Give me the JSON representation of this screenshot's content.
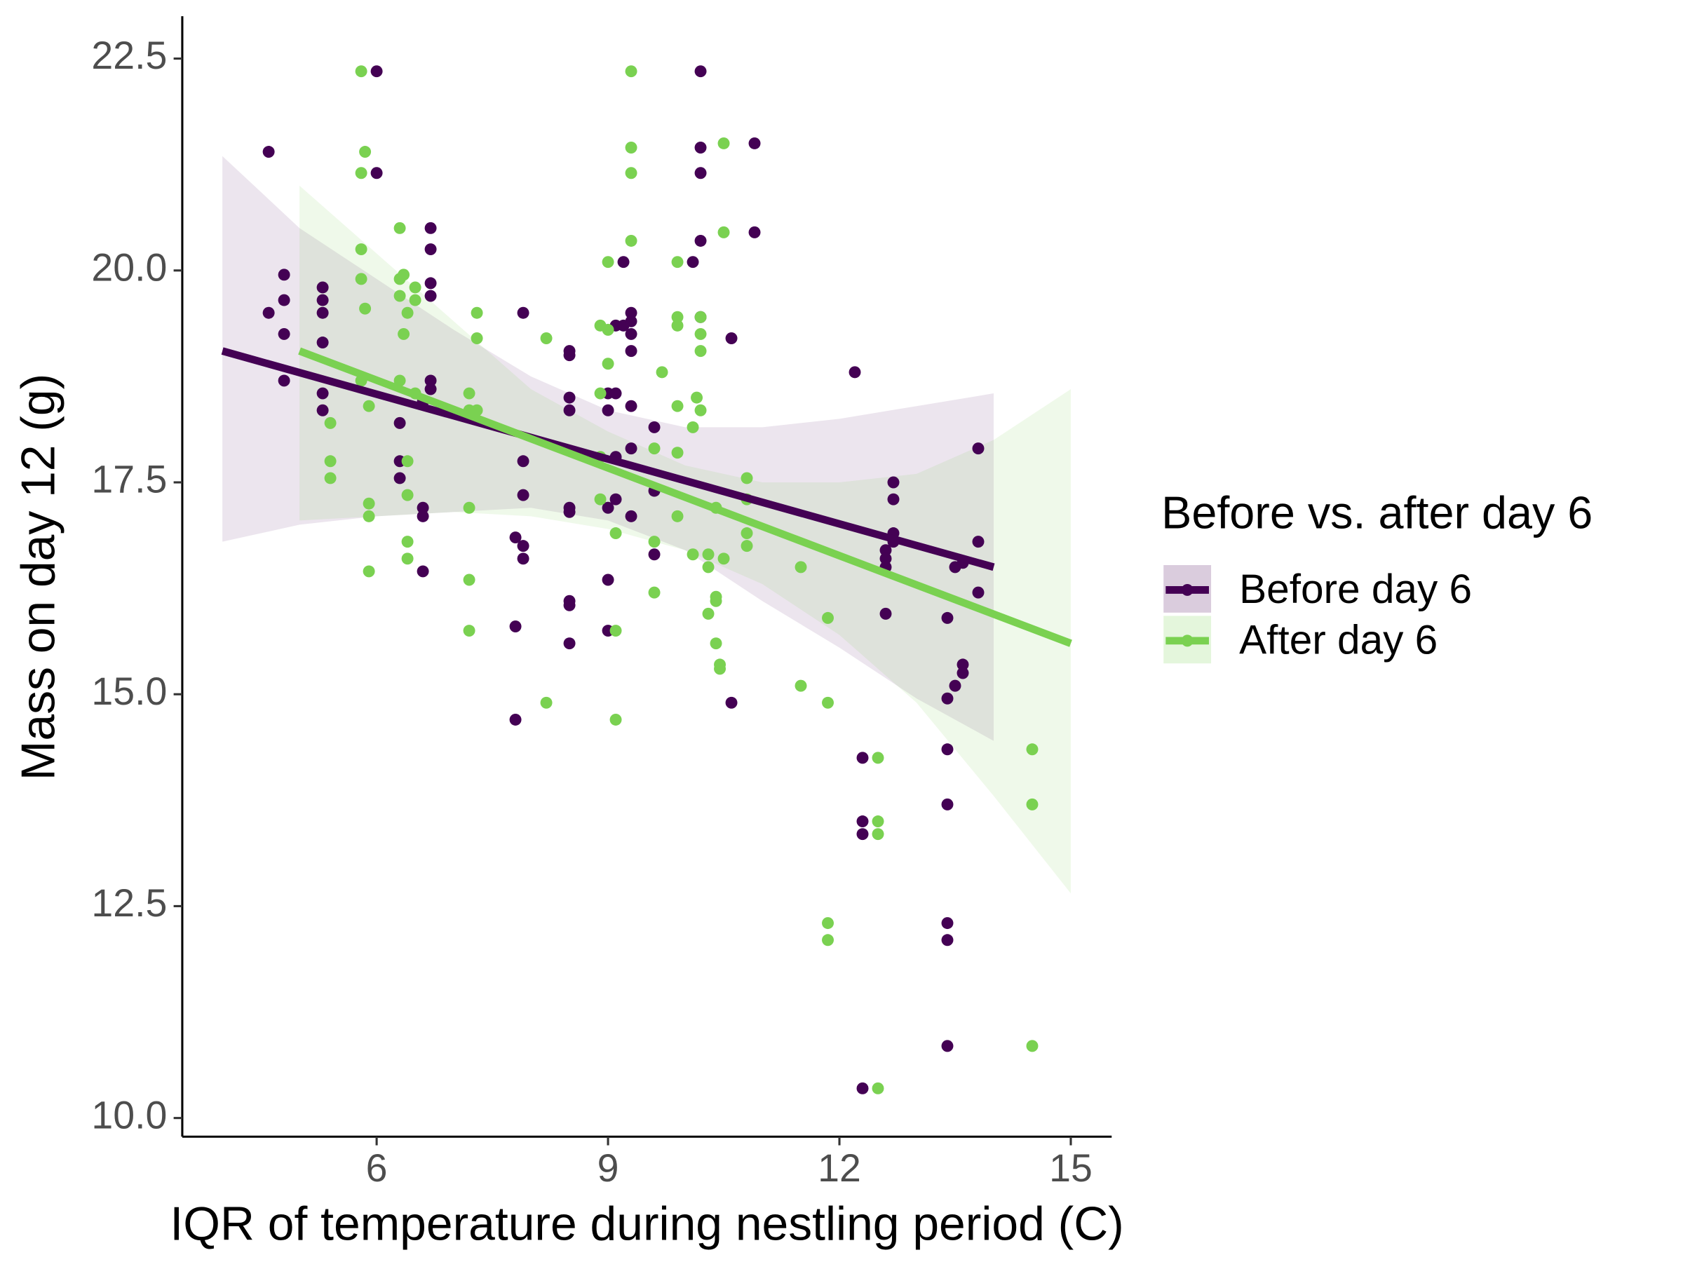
{
  "chart_data": {
    "type": "scatter",
    "x_label": "IQR of temperature during nestling period (C)",
    "y_label": "Mass on day 12 (g)",
    "legend_title": "Before vs. after day 6",
    "legend_position": "right",
    "xlim": [
      3.48,
      15.53
    ],
    "ylim": [
      9.78,
      23.0
    ],
    "xticks": [
      6,
      9,
      12,
      15
    ],
    "yticks": [
      {
        "value": 10,
        "label": "10.0"
      },
      12.5,
      {
        "value": 15,
        "label": "15.0"
      },
      17.5,
      {
        "value": 20,
        "label": "20.0"
      },
      22.5
    ],
    "grid": false,
    "series": [
      {
        "name": "Before day 6",
        "color": "#440154",
        "x": [
          4.6,
          4.6,
          4.8,
          4.8,
          4.8,
          4.8,
          5.3,
          5.3,
          5.3,
          5.3,
          5.3,
          5.3,
          6.0,
          6.0,
          6.3,
          6.3,
          6.3,
          6.6,
          6.6,
          6.6,
          6.6,
          6.7,
          6.7,
          6.7,
          6.7,
          6.7,
          6.7,
          7.8,
          7.8,
          7.8,
          7.9,
          7.9,
          7.9,
          7.9,
          7.9,
          8.5,
          8.5,
          8.5,
          8.5,
          8.5,
          8.5,
          8.5,
          8.5,
          8.5,
          9.0,
          9.0,
          9.0,
          9.0,
          9.0,
          9.1,
          9.1,
          9.1,
          9.1,
          9.2,
          9.2,
          9.3,
          9.3,
          9.3,
          9.3,
          9.3,
          9.3,
          9.3,
          9.6,
          9.6,
          9.6,
          10.1,
          10.2,
          10.2,
          10.2,
          10.2,
          10.2,
          10.6,
          10.6,
          10.9,
          10.9,
          12.2,
          12.3,
          12.3,
          12.3,
          12.3,
          12.6,
          12.6,
          12.6,
          12.6,
          12.7,
          12.7,
          12.7,
          12.7,
          13.4,
          13.4,
          13.4,
          13.4,
          13.4,
          13.4,
          13.4,
          13.5,
          13.5,
          13.6,
          13.6,
          13.6,
          13.8,
          13.8,
          13.8
        ],
        "values": [
          21.4,
          19.5,
          19.95,
          19.65,
          19.25,
          18.7,
          19.8,
          19.65,
          19.5,
          19.15,
          18.55,
          18.35,
          22.35,
          21.15,
          18.2,
          17.75,
          17.55,
          18.45,
          17.2,
          17.1,
          16.45,
          20.5,
          20.25,
          19.85,
          19.7,
          18.7,
          18.6,
          16.85,
          15.8,
          14.7,
          19.5,
          17.75,
          17.35,
          16.75,
          16.6,
          19.05,
          19.0,
          18.5,
          18.35,
          17.2,
          17.15,
          16.1,
          16.05,
          15.6,
          18.55,
          18.35,
          17.2,
          16.35,
          15.75,
          19.35,
          18.55,
          17.8,
          17.3,
          20.1,
          19.35,
          19.5,
          19.4,
          19.25,
          19.05,
          18.4,
          17.9,
          17.1,
          18.15,
          17.4,
          16.65,
          20.1,
          22.35,
          21.45,
          21.15,
          20.35,
          19.45,
          19.2,
          14.9,
          21.5,
          20.45,
          18.8,
          14.25,
          13.5,
          13.35,
          10.35,
          16.7,
          16.6,
          16.5,
          15.95,
          17.5,
          17.3,
          16.9,
          16.8,
          15.9,
          14.95,
          14.35,
          13.7,
          12.3,
          12.1,
          10.85,
          16.5,
          15.1,
          16.55,
          15.35,
          15.25,
          17.9,
          16.8,
          16.2
        ],
        "fit": {
          "x": [
            4.0,
            14.0
          ],
          "values": [
            19.05,
            16.5
          ]
        },
        "band": {
          "x": [
            4,
            5,
            6,
            7,
            8,
            9,
            10,
            11,
            12,
            13,
            14
          ],
          "upper": [
            21.35,
            20.5,
            19.9,
            19.3,
            18.75,
            18.35,
            18.15,
            18.15,
            18.25,
            18.4,
            18.55
          ],
          "lower": [
            16.8,
            17.0,
            17.1,
            17.15,
            17.2,
            17.05,
            16.7,
            16.1,
            15.55,
            14.95,
            14.45
          ]
        }
      },
      {
        "name": "After day 6",
        "color": "#7AD151",
        "x": [
          5.8,
          5.85,
          5.8,
          5.8,
          5.8,
          5.85,
          5.8,
          5.9,
          5.9,
          5.9,
          5.9,
          5.4,
          5.4,
          5.4,
          6.3,
          6.3,
          6.3,
          6.35,
          6.35,
          6.4,
          6.4,
          6.4,
          6.4,
          6.4,
          6.5,
          6.5,
          6.3,
          6.5,
          7.2,
          7.2,
          7.2,
          7.2,
          7.2,
          7.3,
          7.3,
          7.3,
          8.2,
          8.2,
          8.9,
          8.9,
          8.9,
          8.9,
          9.0,
          9.0,
          9.0,
          9.1,
          9.1,
          9.1,
          9.3,
          9.3,
          9.3,
          9.3,
          9.6,
          9.6,
          9.6,
          9.7,
          9.9,
          9.9,
          9.9,
          9.9,
          9.9,
          9.9,
          10.1,
          10.1,
          10.2,
          10.2,
          10.2,
          10.15,
          10.2,
          10.3,
          10.3,
          10.3,
          10.4,
          10.4,
          10.4,
          10.4,
          10.45,
          10.45,
          10.5,
          10.5,
          10.5,
          10.8,
          10.8,
          10.8,
          10.8,
          11.5,
          11.5,
          11.85,
          11.85,
          11.85,
          11.85,
          12.5,
          12.5,
          12.5,
          12.5,
          14.5,
          14.5,
          14.5
        ],
        "values": [
          22.35,
          21.4,
          21.15,
          20.25,
          19.9,
          19.55,
          18.7,
          18.4,
          17.25,
          17.1,
          16.45,
          18.2,
          17.75,
          17.55,
          20.5,
          19.9,
          19.7,
          19.95,
          19.25,
          19.5,
          17.75,
          17.35,
          16.8,
          16.6,
          19.8,
          19.65,
          18.7,
          18.55,
          18.55,
          18.35,
          17.2,
          16.35,
          15.75,
          19.5,
          19.2,
          18.35,
          19.2,
          14.9,
          19.35,
          18.55,
          17.8,
          17.3,
          20.1,
          19.3,
          18.9,
          16.9,
          15.75,
          14.7,
          22.35,
          21.45,
          21.15,
          20.35,
          17.9,
          16.8,
          16.2,
          18.8,
          20.1,
          19.45,
          19.35,
          18.4,
          17.85,
          17.1,
          18.15,
          16.65,
          19.45,
          19.25,
          19.05,
          18.5,
          18.35,
          16.65,
          16.5,
          15.95,
          17.2,
          16.15,
          16.1,
          15.6,
          15.35,
          15.3,
          21.5,
          20.45,
          16.6,
          17.55,
          17.3,
          16.9,
          16.75,
          16.5,
          15.1,
          15.9,
          14.9,
          12.3,
          12.1,
          14.25,
          13.5,
          13.35,
          10.35,
          14.35,
          13.7,
          10.85
        ],
        "fit": {
          "x": [
            5.0,
            15.0
          ],
          "values": [
            19.05,
            15.6
          ]
        },
        "band": {
          "x": [
            5,
            6,
            7,
            8,
            9,
            10,
            11,
            12,
            13,
            14,
            15
          ],
          "upper": [
            21.0,
            20.2,
            19.4,
            18.6,
            18.1,
            17.7,
            17.5,
            17.5,
            17.6,
            18.0,
            18.6
          ],
          "lower": [
            17.05,
            17.1,
            17.15,
            17.1,
            16.95,
            16.7,
            16.3,
            15.7,
            14.9,
            13.8,
            12.65
          ]
        }
      }
    ]
  }
}
